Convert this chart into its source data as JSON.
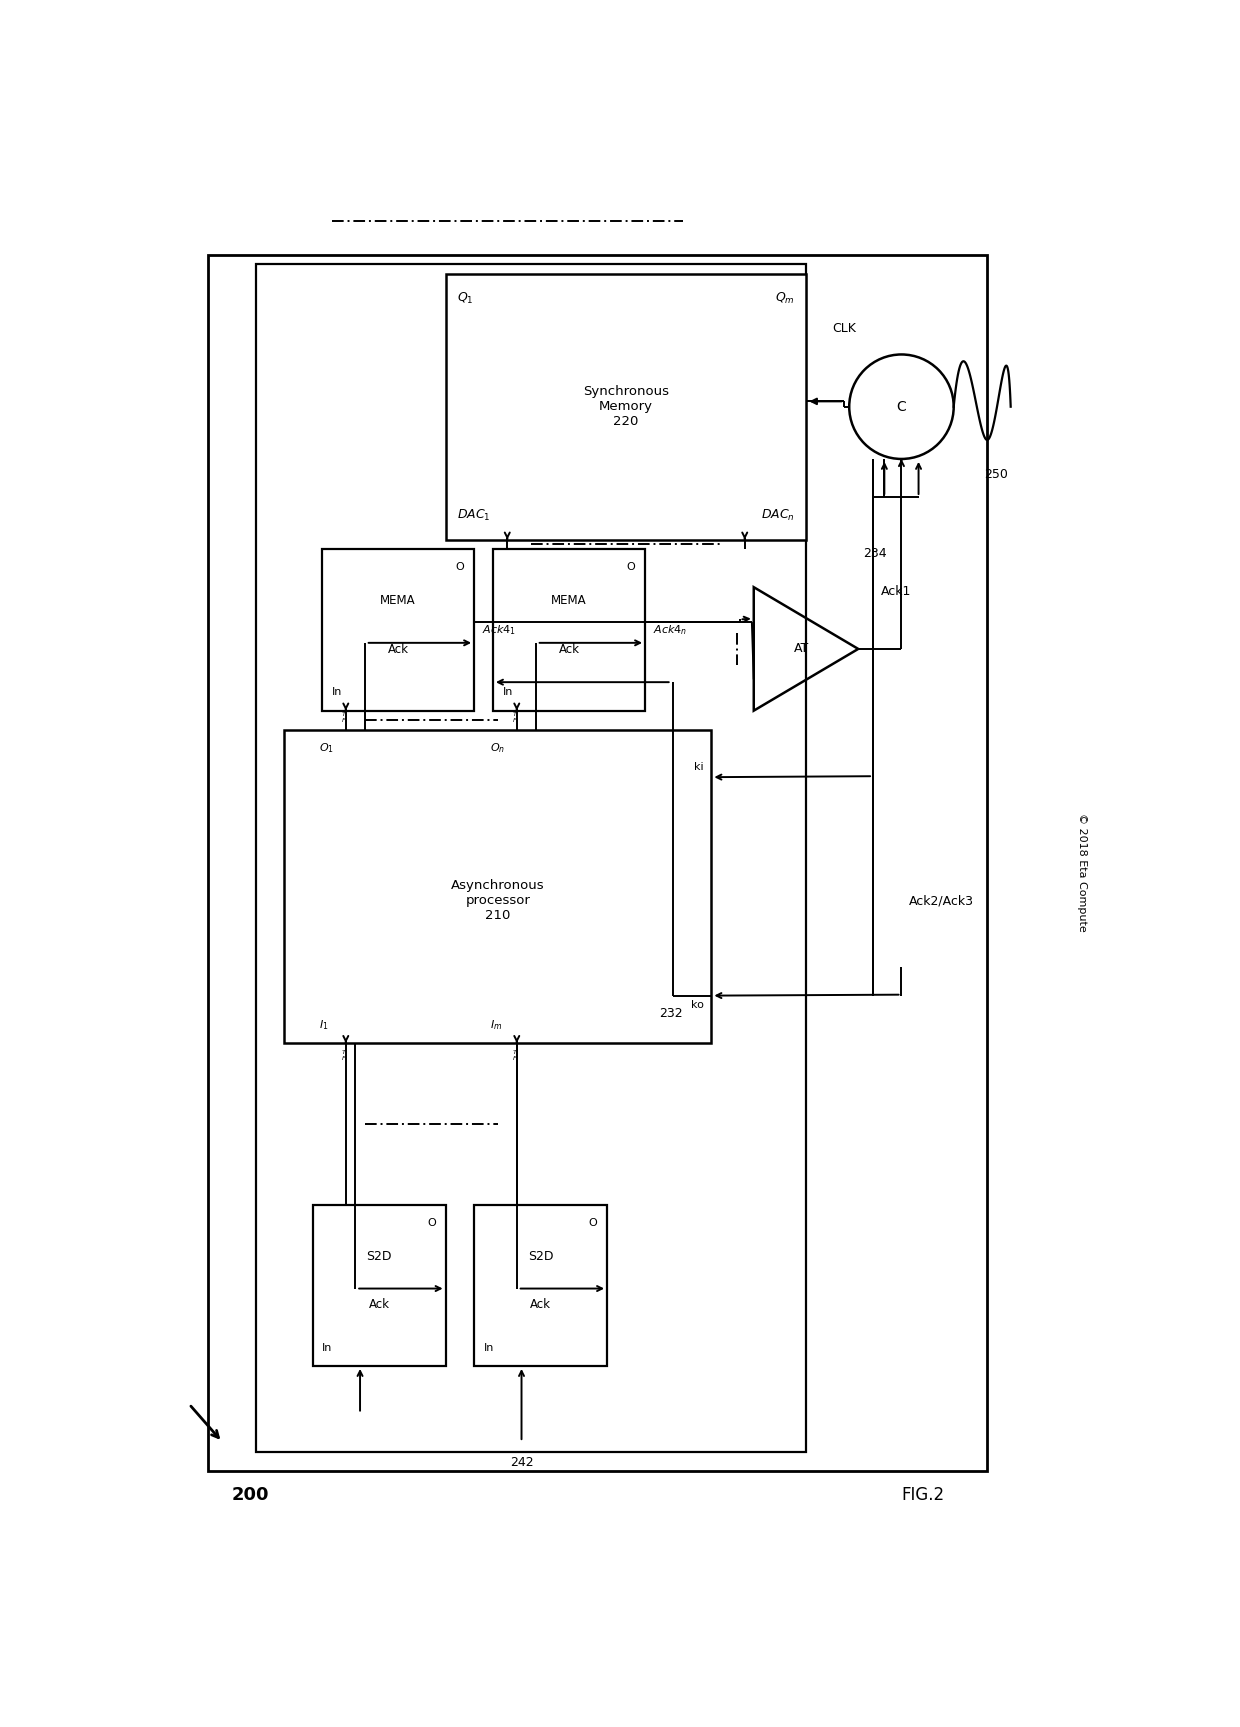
{
  "bg_color": "#ffffff",
  "fig_label": "FIG.2",
  "fig_number": "200",
  "copyright": "© 2018 Eta Compute"
}
